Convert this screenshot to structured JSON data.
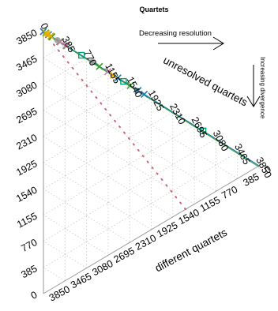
{
  "chart_data": {
    "type": "scatter",
    "title": "Quartets",
    "axes": {
      "left": {
        "label": "",
        "range": [
          0,
          3850
        ],
        "ticks": [
          0,
          385,
          770,
          1155,
          1540,
          1925,
          2310,
          2695,
          3080,
          3465,
          3850
        ]
      },
      "top": {
        "label": "unresolved quartets",
        "range": [
          0,
          3850
        ],
        "ticks": [
          0,
          385,
          770,
          1155,
          1540,
          1925,
          2310,
          2695,
          3080,
          3465,
          3850
        ]
      },
      "bottom": {
        "label": "different quartets",
        "range": [
          0,
          3850
        ],
        "ticks": [
          0,
          385,
          770,
          1155,
          1540,
          1925,
          2310,
          2695,
          3080,
          3465,
          3850
        ]
      }
    },
    "annotations": [
      {
        "text": "Decreasing resolution",
        "direction": "right"
      },
      {
        "text": "Increasing divergence",
        "direction": "down"
      }
    ],
    "grid": true,
    "reference_line": {
      "style": "dotted",
      "color": "#cc6677",
      "from": [
        0,
        2540
      ],
      "to": [
        3850,
        0
      ]
    },
    "series": [
      {
        "marker": "x",
        "color": "#1f78b4",
        "points": [
          [
            3850,
            0
          ],
          [
            3760,
            90
          ],
          [
            3700,
            150
          ],
          [
            2520,
            1330
          ],
          [
            2160,
            1690
          ],
          [
            2050,
            1800
          ]
        ]
      },
      {
        "marker": "x",
        "color": "#33a02c",
        "points": [
          [
            3810,
            40
          ],
          [
            3700,
            150
          ],
          [
            3560,
            290
          ],
          [
            3440,
            410
          ],
          [
            2850,
            1000
          ],
          [
            2300,
            1550
          ]
        ]
      },
      {
        "marker": "x",
        "color": "#e6ab02",
        "points": [
          [
            3720,
            130
          ],
          [
            3800,
            50
          ],
          [
            2600,
            1250
          ]
        ]
      },
      {
        "marker": "x",
        "color": "#cc79a7",
        "points": [
          [
            3450,
            400
          ],
          [
            3550,
            300
          ],
          [
            2700,
            1150
          ]
        ]
      },
      {
        "marker": "square",
        "color": "#009e73",
        "points": [
          [
            1000,
            2850
          ],
          [
            2420,
            1430
          ],
          [
            3170,
            680
          ]
        ]
      },
      {
        "marker": "circle",
        "color": "#999999",
        "points": [
          [
            3600,
            250
          ],
          [
            2980,
            870
          ]
        ]
      },
      {
        "marker": "circle",
        "color": "#e6ab02",
        "points": [
          [
            3780,
            70
          ]
        ]
      }
    ]
  }
}
